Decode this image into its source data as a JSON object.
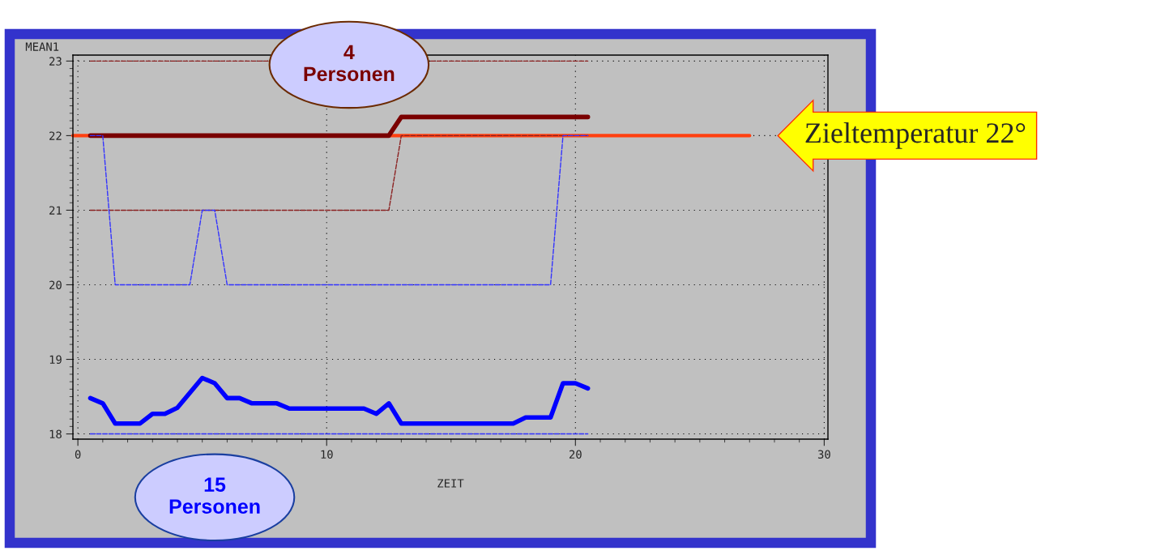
{
  "chart_data": {
    "type": "line",
    "xlabel": "ZEIT",
    "ylabel": "MEAN1",
    "xlim": [
      -0.2,
      30.15
    ],
    "ylim": [
      17.93,
      23.08
    ],
    "xticks": [
      0,
      10,
      20,
      30
    ],
    "yticks": [
      18,
      19,
      20,
      21,
      22,
      23
    ],
    "grid": true,
    "legend": false,
    "series": [
      {
        "color": "#8b2020",
        "line_style": "dashed",
        "x": [
          0.5,
          20.5
        ],
        "values": [
          23,
          23
        ]
      },
      {
        "color": "#8b2020",
        "line_style": "dashed",
        "x": [
          0.5,
          12.5,
          13,
          20.5
        ],
        "values": [
          21,
          21,
          22,
          22
        ]
      },
      {
        "color": "#3333ff",
        "line_style": "dashed",
        "x": [
          0.5,
          1,
          1.5,
          4.5,
          5,
          5.5,
          6,
          19,
          19.5,
          20.5
        ],
        "values": [
          22,
          22,
          20,
          20,
          21,
          21,
          20,
          20,
          22,
          22
        ]
      },
      {
        "color": "#3333ff",
        "line_style": "dashed",
        "x": [
          0.5,
          20.5
        ],
        "values": [
          18,
          18
        ]
      },
      {
        "name": "4 Personen",
        "color": "#7a0000",
        "line_style": "solid",
        "x": [
          0.5,
          12.5,
          13,
          20.5
        ],
        "values": [
          22,
          22,
          22.25,
          22.25
        ]
      },
      {
        "name": "15 Personen",
        "color": "#0000ff",
        "line_style": "solid",
        "x": [
          0.5,
          1,
          1.5,
          2.5,
          3,
          3.5,
          4,
          5,
          5.5,
          6,
          6.5,
          7,
          8,
          8.5,
          11.5,
          12,
          12.5,
          13,
          17.5,
          18,
          19,
          19.5,
          20,
          20.5
        ],
        "values": [
          18.48,
          18.41,
          18.14,
          18.14,
          18.27,
          18.27,
          18.35,
          18.75,
          18.68,
          18.48,
          18.48,
          18.41,
          18.41,
          18.34,
          18.34,
          18.27,
          18.41,
          18.14,
          18.14,
          18.22,
          18.22,
          18.68,
          18.68,
          18.61
        ]
      }
    ],
    "ref_lines": [
      {
        "axis": "y",
        "value": 22,
        "label": "Zieltemperatur 22°",
        "color": "#ff4010",
        "line_style": "solid"
      }
    ]
  }
}
